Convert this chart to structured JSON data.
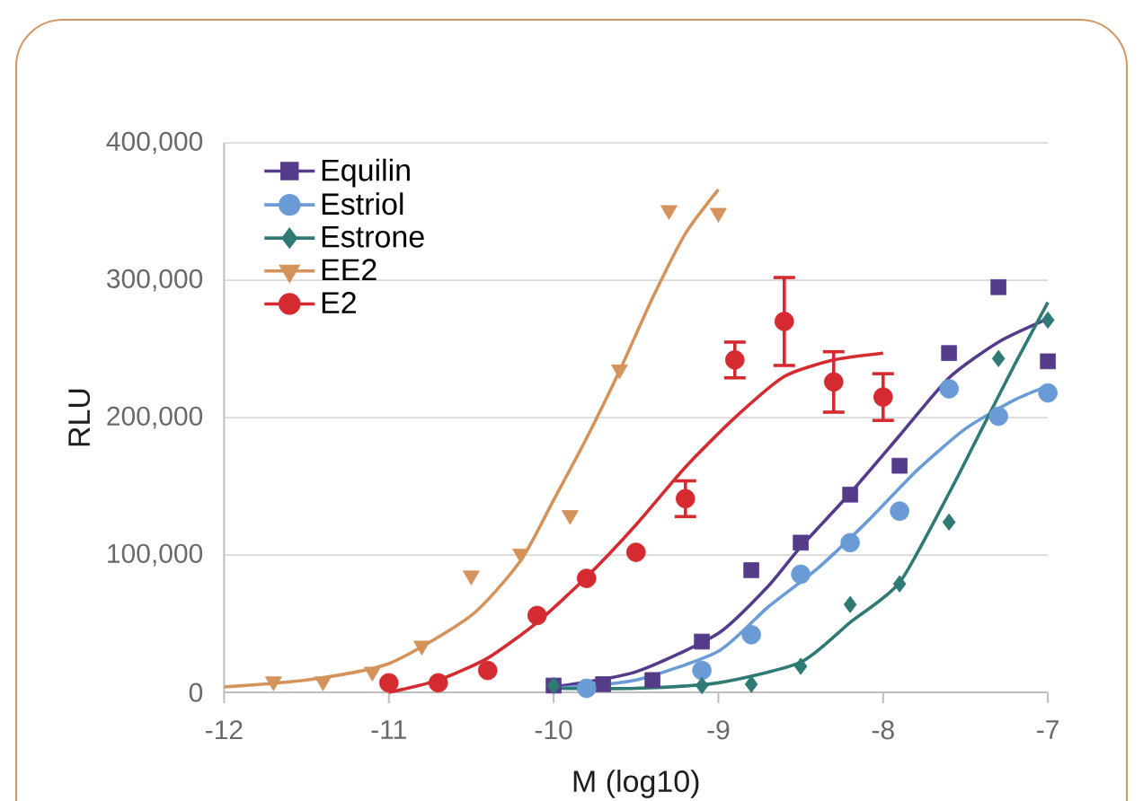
{
  "chart_data": {
    "type": "scatter",
    "xlabel": "M (log10)",
    "ylabel": "RLU",
    "xlim": [
      -12,
      -7
    ],
    "xticks": [
      -12,
      -11,
      -10,
      -9,
      -8,
      -7
    ],
    "ylim": [
      0,
      400000
    ],
    "yticks": [
      0,
      {
        "value": 100000,
        "label": "100,000"
      },
      {
        "value": 200000,
        "label": "200,000"
      },
      {
        "value": 300000,
        "label": "300,000"
      },
      {
        "value": 400000,
        "label": "400,000"
      }
    ],
    "grid": "y",
    "legend": "top left",
    "series": [
      {
        "name": "Equilin",
        "marker": "square",
        "color": "#553c8b",
        "x": [
          -10.0,
          -9.7,
          -9.4,
          -9.1,
          -8.8,
          -8.5,
          -8.2,
          -7.9,
          -7.6,
          -7.3,
          -7.0
        ],
        "values": [
          5000,
          6000,
          9000,
          37000,
          89000,
          109000,
          144000,
          165000,
          247000,
          295000,
          241000
        ]
      },
      {
        "name": "Estriol",
        "marker": "circle",
        "color": "#6a9bd6",
        "x": [
          -9.8,
          -9.1,
          -8.8,
          -8.5,
          -8.2,
          -7.9,
          -7.6,
          -7.3,
          -7.0
        ],
        "values": [
          3000,
          16000,
          42000,
          86000,
          109000,
          132000,
          221000,
          201000,
          218000
        ]
      },
      {
        "name": "Estrone",
        "marker": "diamond",
        "color": "#2f7a74",
        "x": [
          -10.0,
          -9.1,
          -8.8,
          -8.5,
          -8.2,
          -7.9,
          -7.6,
          -7.3,
          -7.0
        ],
        "values": [
          5000,
          5000,
          6000,
          19000,
          64000,
          79000,
          124000,
          243000,
          271000
        ]
      },
      {
        "name": "EE2",
        "marker": "triangle",
        "color": "#d4935a",
        "x": [
          -11.7,
          -11.4,
          -11.1,
          -10.8,
          -10.5,
          -10.2,
          -9.9,
          -9.6,
          -9.3,
          -9.0
        ],
        "values": [
          8000,
          8000,
          15000,
          34000,
          85000,
          101000,
          129000,
          235000,
          351000,
          349000
        ]
      },
      {
        "name": "E2",
        "marker": "circle",
        "color": "#d42a30",
        "x": [
          -11.0,
          -10.7,
          -10.4,
          -10.1,
          -9.8,
          -9.5,
          -9.2,
          -8.9,
          -8.6,
          -8.3,
          -8.0
        ],
        "values": [
          7000,
          7000,
          16000,
          56000,
          83000,
          102000,
          141000,
          242000,
          270000,
          226000,
          215000
        ],
        "errors": [
          null,
          null,
          null,
          null,
          null,
          null,
          13000,
          13000,
          32000,
          22000,
          17000
        ]
      },
      {
        "type": "line",
        "marker": "none",
        "color": "#553c8b",
        "x": [
          -10.0,
          -9.5,
          -9.0,
          -8.7,
          -8.5,
          -8.2,
          -7.9,
          -7.6,
          -7.3,
          -7.0
        ],
        "values": [
          4000,
          15000,
          43000,
          77000,
          106000,
          145000,
          187000,
          229000,
          255000,
          272000
        ]
      },
      {
        "type": "line",
        "marker": "none",
        "color": "#6a9bd6",
        "x": [
          -10.0,
          -9.5,
          -9.0,
          -8.7,
          -8.4,
          -8.1,
          -7.8,
          -7.5,
          -7.2,
          -7.0
        ],
        "values": [
          3000,
          9000,
          30000,
          62000,
          90000,
          124000,
          161000,
          192000,
          213000,
          223000
        ]
      },
      {
        "type": "line",
        "marker": "none",
        "color": "#2f7a74",
        "x": [
          -10.0,
          -9.5,
          -9.0,
          -8.5,
          -8.2,
          -7.9,
          -7.6,
          -7.4,
          -7.2,
          -7.0
        ],
        "values": [
          3000,
          3000,
          7000,
          22000,
          51000,
          80000,
          145000,
          192000,
          239000,
          284000
        ]
      },
      {
        "type": "line",
        "marker": "none",
        "color": "#d4935a",
        "x": [
          -12.0,
          -11.5,
          -11.0,
          -10.5,
          -10.2,
          -10.0,
          -9.8,
          -9.6,
          -9.4,
          -9.2,
          -9.0
        ],
        "values": [
          4000,
          9000,
          21000,
          56000,
          96000,
          140000,
          185000,
          234000,
          287000,
          334000,
          366000
        ]
      },
      {
        "type": "line",
        "marker": "none",
        "color": "#d42a30",
        "x": [
          -11.0,
          -10.7,
          -10.4,
          -10.1,
          -9.8,
          -9.5,
          -9.2,
          -8.9,
          -8.6,
          -8.3,
          -8.0
        ],
        "values": [
          0,
          9000,
          25000,
          51000,
          84000,
          122000,
          164000,
          200000,
          230000,
          242000,
          247000
        ]
      }
    ]
  }
}
